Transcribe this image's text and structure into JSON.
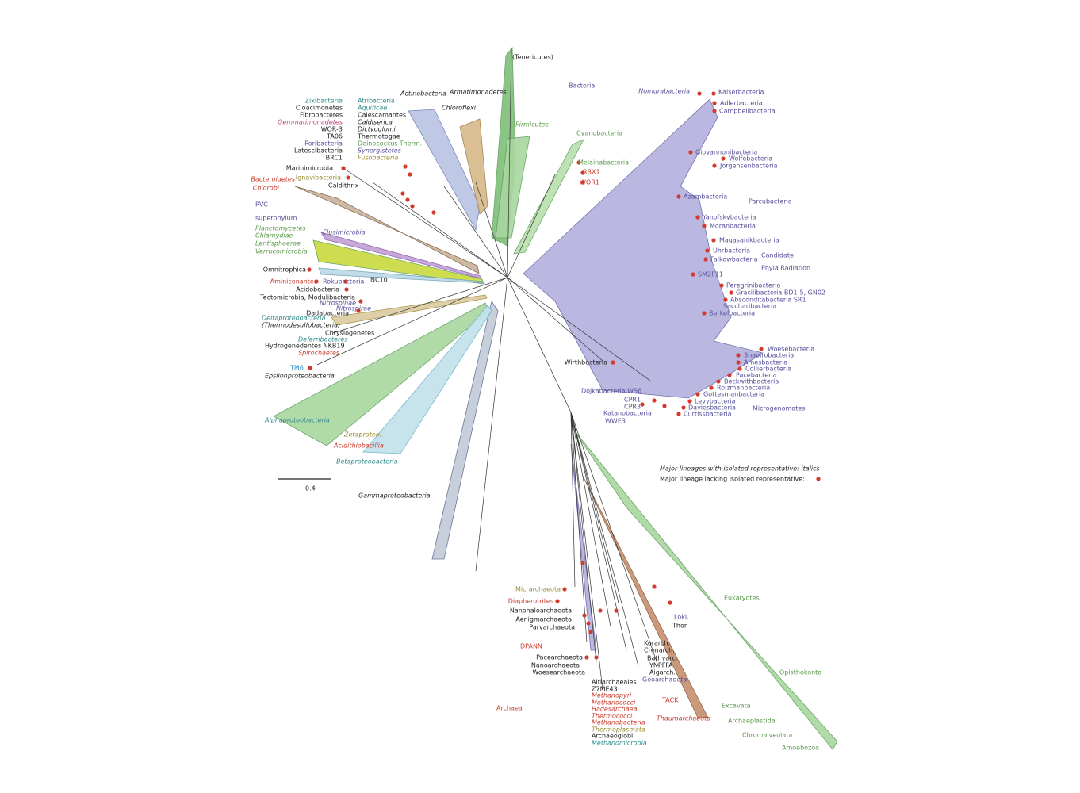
{
  "labels": [
    "(Tenericutes)",
    "Bacteria",
    "Actinobacteria",
    "Armatimonadetes",
    "Chloroflexi",
    "Firmicutes",
    "Cyanobacteria",
    "Melainabacteria",
    "RBX1",
    "WOR1",
    "Zixibacteria",
    "Cloacimonetes",
    "Fibrobacteres",
    "Gemmatimonadetes",
    "WOR-3",
    "TA06",
    "Poribacteria",
    "Latescibacteria",
    "BRC1",
    "Atribacteria",
    "Aquificae",
    "Calescamantes",
    "Caldiserica",
    "Dictyoglomi",
    "Thermotogae",
    "Deinococcus-Therm.",
    "Synergistetes",
    "Fusobacteria",
    "Marinimicrobia",
    "Ignavibacteria",
    "Bacteroidetes",
    "Chlorobi",
    "Caldithrix",
    "PVC",
    "superphylum",
    "Planctomycetes",
    "Chlamydiae",
    "Lentisphaerae",
    "Verrucomicrobia",
    "Elusimicrobia",
    "Omnitrophica",
    "Aminicenantes",
    "Rokubacteria",
    "NC10",
    "Acidobacteria",
    "Tectomicrobia, Modulibacteria",
    "Nitrospinae",
    "Nitrospirae",
    "Dadabacteria",
    "Deltaproteobacteria",
    "(Thermodesulfobacteria)",
    "Chrysiogenetes",
    "Deferribacteres",
    "Hydrogenedentes NKB19",
    "Spirochaetes",
    "TM6",
    "Epsilonproteobacteria",
    "Alphaproteobacteria",
    "Zetaproteo.",
    "Acidithiobacillia",
    "Betaproteobacteria",
    "Gammaproteobacteria",
    "0.4",
    "Nomurabacteria",
    "Kaiserbacteria",
    "Adlerbacteria",
    "Campbellbacteria",
    "Giovannonibacteria",
    "Wolfebacteria",
    "Jorgensenbacteria",
    "Parcubacteria",
    "Azambacteria",
    "Yanofskybacteria",
    "Moranbacteria",
    "Magasanikbacteria",
    "Uhrbacteria",
    "Falkowbacteria",
    "Candidate",
    "Phyla Radiation",
    "SM2F11",
    "Peregrinibacteria",
    "Gracilibacteria BD1-5, GN02",
    "Absconditabacteria SR1",
    "Saccharibacteria",
    "Berkelbacteria",
    "Woesebacteria",
    "Shapirobacteria",
    "Amesbacteria",
    "Collierbacteria",
    "Pacebacteria",
    "Beckwithbacteria",
    "Roizmanbacteria",
    "Gottesmanbacteria",
    "Levybacteria",
    "Daviesbacteria",
    "Curtissbacteria",
    "Microgenomates",
    "Dojkabacteria WS6",
    "CPR1",
    "CPR3",
    "Katanobacteria",
    "WWE3",
    "Wirthbacteria",
    "Major lineages with isolated representative: italics",
    "Major lineage lacking isolated representative:",
    "Micrarchaeota",
    "Diapherotrites",
    "Nanohaloarchaeota",
    "Aenigmarchaeota",
    "Parvarchaeota",
    "DPANN",
    "Pacearchaeota",
    "Nanoarchaeota",
    "Woesearchaeota",
    "Altiarchaeales",
    "Z7ME43",
    "Methanopyri",
    "Methanococci",
    "Hadesarchaea",
    "Thermococci",
    "Methanobacteria",
    "Thermoplasmata",
    "Archaeoglobi",
    "Methanomicrobia",
    "Archaea",
    "Korarch.",
    "Crenarch.",
    "Bathyarc.",
    "YNPFFA",
    "Aigarch.",
    "Geoarchaeota",
    "Loki.",
    "Thor.",
    "TACK",
    "Thaumarchaeota",
    "Eukaryotes",
    "Opisthokonta",
    "Excavata",
    "Archaeplastida",
    "Chromalveolata",
    "Amoebozoa"
  ]
}
